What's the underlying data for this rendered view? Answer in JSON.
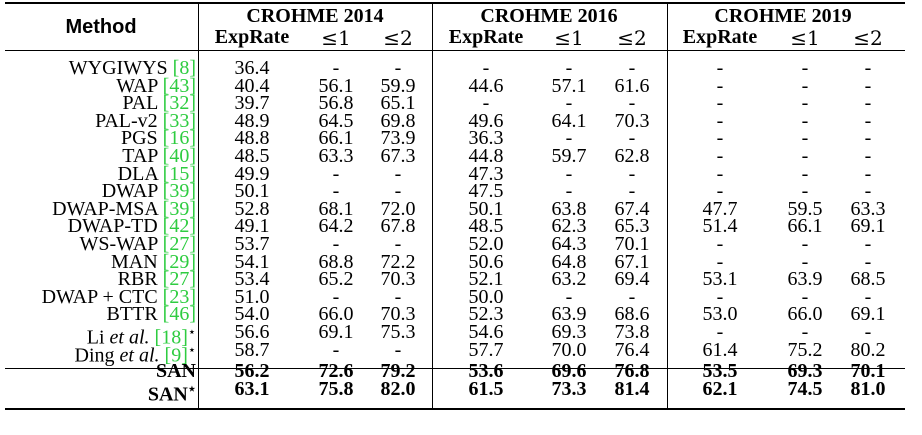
{
  "header": {
    "method_label": "Method",
    "groups": [
      "CROHME 2014",
      "CROHME 2016",
      "CROHME 2019"
    ],
    "metric_labels": [
      "ExpRate",
      "≤1",
      "≤2"
    ]
  },
  "rows": [
    {
      "name": "WYGIWYS",
      "ref": "8",
      "suffix": "",
      "values": [
        "36.4",
        "-",
        "-",
        "-",
        "-",
        "-",
        "-",
        "-",
        "-"
      ],
      "bold": false
    },
    {
      "name": "WAP",
      "ref": "43",
      "suffix": "",
      "values": [
        "40.4",
        "56.1",
        "59.9",
        "44.6",
        "57.1",
        "61.6",
        "-",
        "-",
        "-"
      ],
      "bold": false
    },
    {
      "name": "PAL",
      "ref": "32",
      "suffix": "",
      "values": [
        "39.7",
        "56.8",
        "65.1",
        "-",
        "-",
        "-",
        "-",
        "-",
        "-"
      ],
      "bold": false
    },
    {
      "name": "PAL-v2",
      "ref": "33",
      "suffix": "",
      "values": [
        "48.9",
        "64.5",
        "69.8",
        "49.6",
        "64.1",
        "70.3",
        "-",
        "-",
        "-"
      ],
      "bold": false
    },
    {
      "name": "PGS",
      "ref": "16",
      "suffix": "",
      "values": [
        "48.8",
        "66.1",
        "73.9",
        "36.3",
        "-",
        "-",
        "-",
        "-",
        "-"
      ],
      "bold": false
    },
    {
      "name": "TAP",
      "ref": "40",
      "suffix": "",
      "values": [
        "48.5",
        "63.3",
        "67.3",
        "44.8",
        "59.7",
        "62.8",
        "-",
        "-",
        "-"
      ],
      "bold": false
    },
    {
      "name": "DLA",
      "ref": "15",
      "suffix": "",
      "values": [
        "49.9",
        "-",
        "-",
        "47.3",
        "-",
        "-",
        "-",
        "-",
        "-"
      ],
      "bold": false
    },
    {
      "name": "DWAP",
      "ref": "39",
      "suffix": "",
      "values": [
        "50.1",
        "-",
        "-",
        "47.5",
        "-",
        "-",
        "-",
        "-",
        "-"
      ],
      "bold": false
    },
    {
      "name": "DWAP-MSA",
      "ref": "39",
      "suffix": "",
      "values": [
        "52.8",
        "68.1",
        "72.0",
        "50.1",
        "63.8",
        "67.4",
        "47.7",
        "59.5",
        "63.3"
      ],
      "bold": false
    },
    {
      "name": "DWAP-TD",
      "ref": "42",
      "suffix": "",
      "values": [
        "49.1",
        "64.2",
        "67.8",
        "48.5",
        "62.3",
        "65.3",
        "51.4",
        "66.1",
        "69.1"
      ],
      "bold": false
    },
    {
      "name": "WS-WAP",
      "ref": "27",
      "suffix": "",
      "values": [
        "53.7",
        "-",
        "-",
        "52.0",
        "64.3",
        "70.1",
        "-",
        "-",
        "-"
      ],
      "bold": false
    },
    {
      "name": "MAN",
      "ref": "29",
      "suffix": "",
      "values": [
        "54.1",
        "68.8",
        "72.2",
        "50.6",
        "64.8",
        "67.1",
        "-",
        "-",
        "-"
      ],
      "bold": false
    },
    {
      "name": "RBR",
      "ref": "27",
      "suffix": "",
      "values": [
        "53.4",
        "65.2",
        "70.3",
        "52.1",
        "63.2",
        "69.4",
        "53.1",
        "63.9",
        "68.5"
      ],
      "bold": false
    },
    {
      "name": "DWAP + CTC",
      "ref": "23",
      "suffix": "",
      "values": [
        "51.0",
        "-",
        "-",
        "50.0",
        "-",
        "-",
        "-",
        "-",
        "-"
      ],
      "bold": false
    },
    {
      "name": "BTTR",
      "ref": "46",
      "suffix": "",
      "values": [
        "54.0",
        "66.0",
        "70.3",
        "52.3",
        "63.9",
        "68.6",
        "53.0",
        "66.0",
        "69.1"
      ],
      "bold": false
    },
    {
      "name": "Li et al.",
      "ref": "18",
      "suffix": "⋆",
      "values": [
        "56.6",
        "69.1",
        "75.3",
        "54.6",
        "69.3",
        "73.8",
        "-",
        "-",
        "-"
      ],
      "bold": false
    },
    {
      "name": "Ding et al.",
      "ref": "9",
      "suffix": "⋆",
      "values": [
        "58.7",
        "-",
        "-",
        "57.7",
        "70.0",
        "76.4",
        "61.4",
        "75.2",
        "80.2"
      ],
      "bold": false
    },
    {
      "name": "SAN",
      "ref": "",
      "suffix": "",
      "values": [
        "56.2",
        "72.6",
        "79.2",
        "53.6",
        "69.6",
        "76.8",
        "53.5",
        "69.3",
        "70.1"
      ],
      "bold": true
    },
    {
      "name": "SAN",
      "ref": "",
      "suffix": "⋆",
      "values": [
        "63.1",
        "75.8",
        "82.0",
        "61.5",
        "73.3",
        "81.4",
        "62.1",
        "74.5",
        "81.0"
      ],
      "bold": true
    }
  ]
}
